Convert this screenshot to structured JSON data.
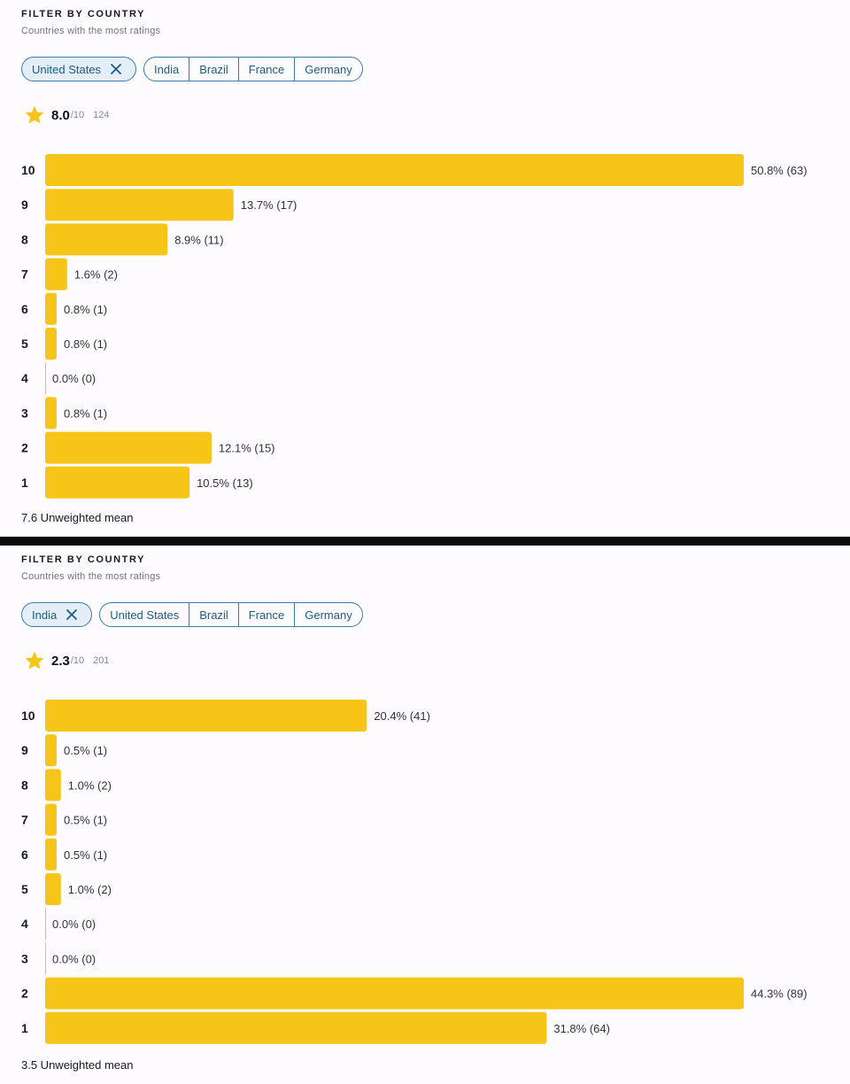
{
  "panels": [
    {
      "filter_title": "FILTER BY COUNTRY",
      "filter_subtitle": "Countries with the most ratings",
      "selected_country": "United States",
      "other_countries": [
        "India",
        "Brazil",
        "France",
        "Germany"
      ],
      "rating": "8.0",
      "rating_scale": "/10",
      "rating_count": "124",
      "unweighted_mean": "7.6 Unweighted mean",
      "chart_data": {
        "type": "bar",
        "orientation": "horizontal",
        "categories": [
          "10",
          "9",
          "8",
          "7",
          "6",
          "5",
          "4",
          "3",
          "2",
          "1"
        ],
        "values": [
          50.8,
          13.7,
          8.9,
          1.6,
          0.8,
          0.8,
          0.0,
          0.8,
          12.1,
          10.5
        ],
        "counts": [
          63,
          17,
          11,
          2,
          1,
          1,
          0,
          1,
          15,
          13
        ],
        "labels": [
          "50.8% (63)",
          "13.7% (17)",
          "8.9% (11)",
          "1.6% (2)",
          "0.8% (1)",
          "0.8% (1)",
          "0.0% (0)",
          "0.8% (1)",
          "12.1% (15)",
          "10.5% (13)"
        ],
        "bar_color": "#f6c518"
      }
    },
    {
      "filter_title": "FILTER BY COUNTRY",
      "filter_subtitle": "Countries with the most ratings",
      "selected_country": "India",
      "other_countries": [
        "United States",
        "Brazil",
        "France",
        "Germany"
      ],
      "rating": "2.3",
      "rating_scale": "/10",
      "rating_count": "201",
      "unweighted_mean": "3.5 Unweighted mean",
      "chart_data": {
        "type": "bar",
        "orientation": "horizontal",
        "categories": [
          "10",
          "9",
          "8",
          "7",
          "6",
          "5",
          "4",
          "3",
          "2",
          "1"
        ],
        "values": [
          20.4,
          0.5,
          1.0,
          0.5,
          0.5,
          1.0,
          0.0,
          0.0,
          44.3,
          31.8
        ],
        "counts": [
          41,
          1,
          2,
          1,
          1,
          2,
          0,
          0,
          89,
          64
        ],
        "labels": [
          "20.4% (41)",
          "0.5% (1)",
          "1.0% (2)",
          "0.5% (1)",
          "0.5% (1)",
          "1.0% (2)",
          "0.0% (0)",
          "0.0% (0)",
          "44.3% (89)",
          "31.8% (64)"
        ],
        "bar_color": "#f6c518"
      }
    }
  ],
  "colors": {
    "bar": "#f6c518",
    "star": "#f5c518",
    "chip_border": "#3d7aa5",
    "chip_text": "#1d5b8a",
    "chip_selected_bg": "#e3eef7"
  },
  "icons": {
    "star": "star-icon",
    "close": "close-icon"
  }
}
